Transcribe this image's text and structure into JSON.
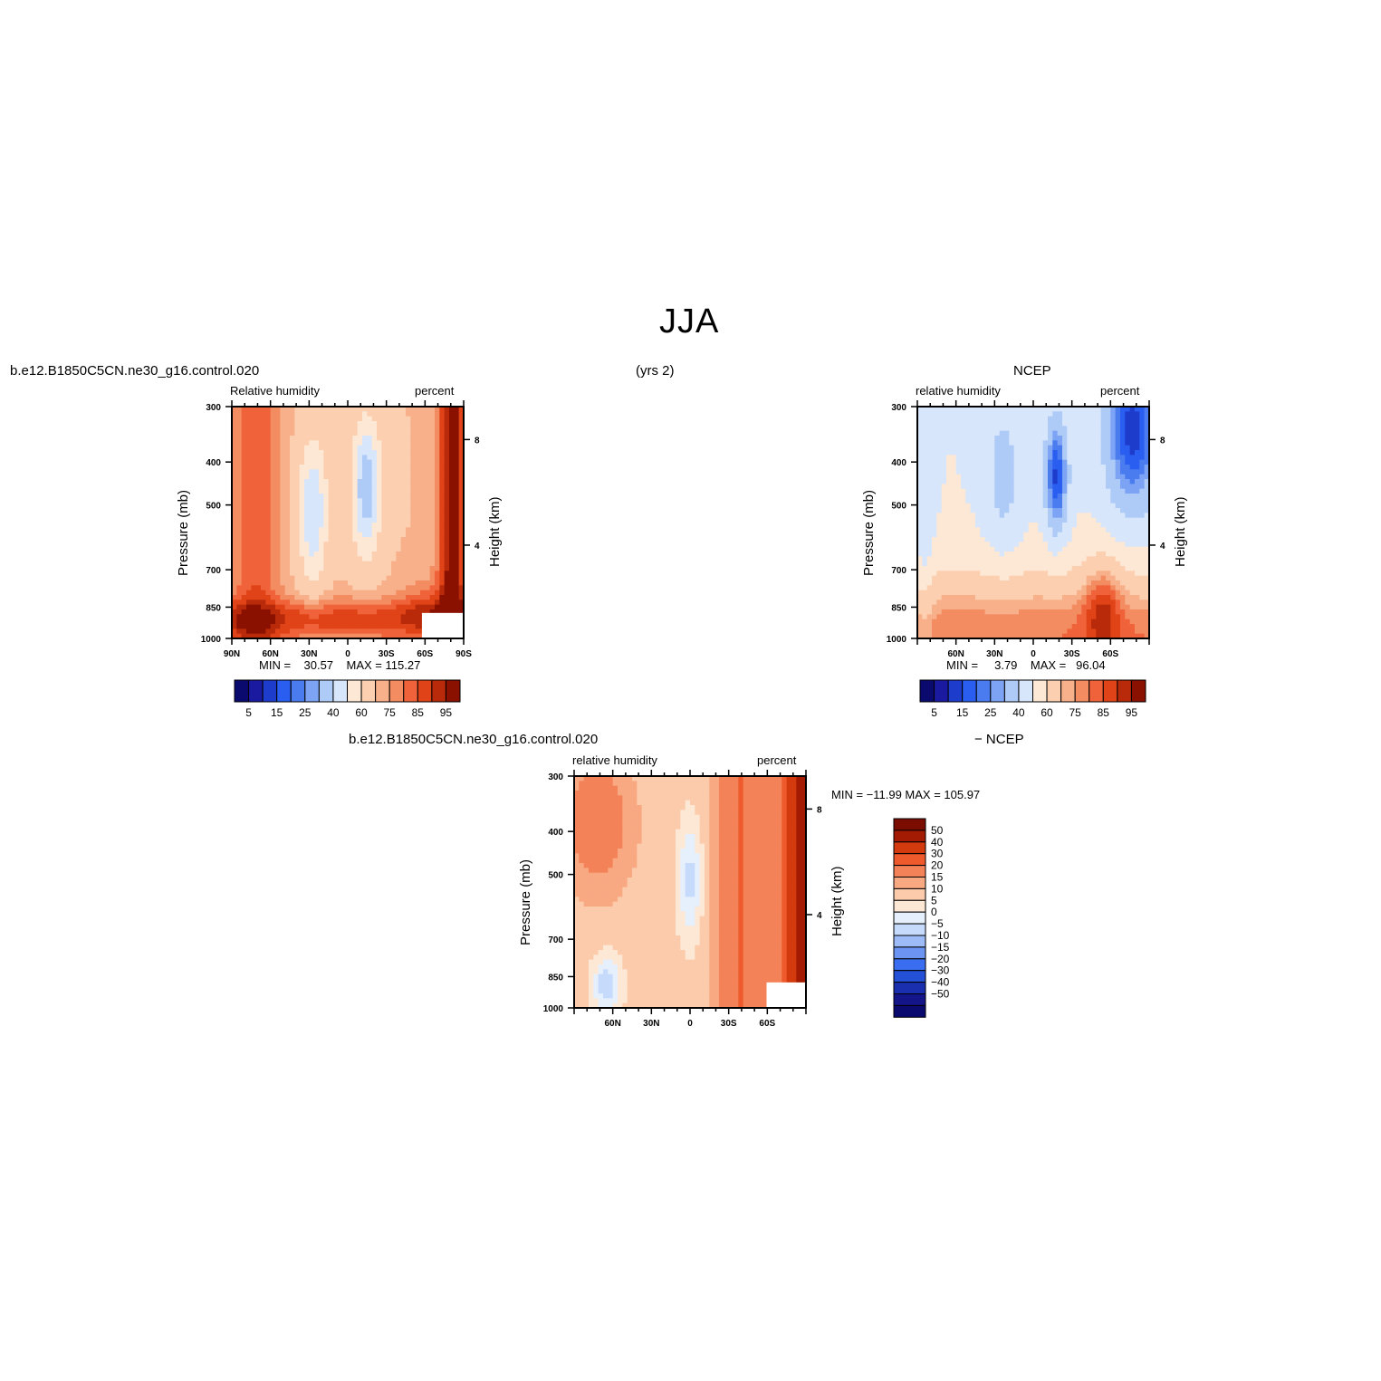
{
  "page": {
    "title": "JJA",
    "years_label": "(yrs 2)"
  },
  "colors": {
    "blue_to_red": [
      "#0a0a6e",
      "#1a1aa0",
      "#1e3ccc",
      "#2a5ef0",
      "#4a7cf0",
      "#7da3f5",
      "#aecbf7",
      "#d7e6fb",
      "#fde8d5",
      "#fbcfb0",
      "#f8b08a",
      "#f48c62",
      "#f0633a",
      "#e04317",
      "#b82a0a",
      "#8a1000"
    ],
    "diff_scale": [
      "#0a0a6e",
      "#15158a",
      "#1a2fb0",
      "#2350d6",
      "#3a6ef0",
      "#6b94f3",
      "#9dbbf7",
      "#c6dbfb",
      "#e6f0fd",
      "#fde8d5",
      "#fbcbac",
      "#f8a982",
      "#f48258",
      "#ef5a2c",
      "#d33a0e",
      "#a31b02",
      "#7a0c00"
    ]
  },
  "chart_data": [
    {
      "type": "heatmap",
      "panel": "model",
      "case_label": "b.e12.B1850C5CN.ne30_g16.control.020",
      "left_title": "Relative  humidity",
      "right_title": "percent",
      "ylabel": "Pressure  (mb)",
      "y2label": "Height  (km)",
      "x_ticks": [
        "90N",
        "60N",
        "30N",
        "0",
        "30S",
        "60S",
        "90S"
      ],
      "y_ticks": [
        "300",
        "400",
        "500",
        "700",
        "850",
        "1000"
      ],
      "y2_ticks": [
        "8",
        "4"
      ],
      "min_label": "MIN =",
      "min_value": "30.57",
      "max_label": "MAX =",
      "max_value": "115.27",
      "colorbar_ticks": [
        "5",
        "15",
        "25",
        "40",
        "60",
        "75",
        "85",
        "95"
      ],
      "ylim": [
        1000,
        300
      ]
    },
    {
      "type": "heatmap",
      "panel": "obs",
      "case_label": "NCEP",
      "left_title": "relative  humidity",
      "right_title": "percent",
      "ylabel": "Pressure  (mb)",
      "y2label": "Height  (km)",
      "x_ticks": [
        "60N",
        "30N",
        "0",
        "30S",
        "60S"
      ],
      "y_ticks": [
        "300",
        "400",
        "500",
        "700",
        "850",
        "1000"
      ],
      "y2_ticks": [
        "8",
        "4"
      ],
      "min_label": "MIN =",
      "min_value": "3.79",
      "max_label": "MAX =",
      "max_value": "96.04",
      "colorbar_ticks": [
        "5",
        "15",
        "25",
        "40",
        "60",
        "75",
        "85",
        "95"
      ],
      "ylim": [
        1000,
        300
      ]
    },
    {
      "type": "heatmap",
      "panel": "difference",
      "case_label": "b.e12.B1850C5CN.ne30_g16.control.020",
      "case_label2": "−  NCEP",
      "left_title": "relative  humidity",
      "right_title": "percent",
      "ylabel": "Pressure  (mb)",
      "y2label": "Height  (km)",
      "x_ticks": [
        "60N",
        "30N",
        "0",
        "30S",
        "60S"
      ],
      "y_ticks": [
        "300",
        "400",
        "500",
        "700",
        "850",
        "1000"
      ],
      "y2_ticks": [
        "8",
        "4"
      ],
      "minmax_text": "MIN = −11.99   MAX = 105.97",
      "colorbar_ticks": [
        "50",
        "40",
        "30",
        "20",
        "15",
        "10",
        "5",
        "0",
        "−5",
        "−10",
        "−15",
        "−20",
        "−30",
        "−40",
        "−50"
      ],
      "ylim": [
        1000,
        300
      ]
    }
  ]
}
